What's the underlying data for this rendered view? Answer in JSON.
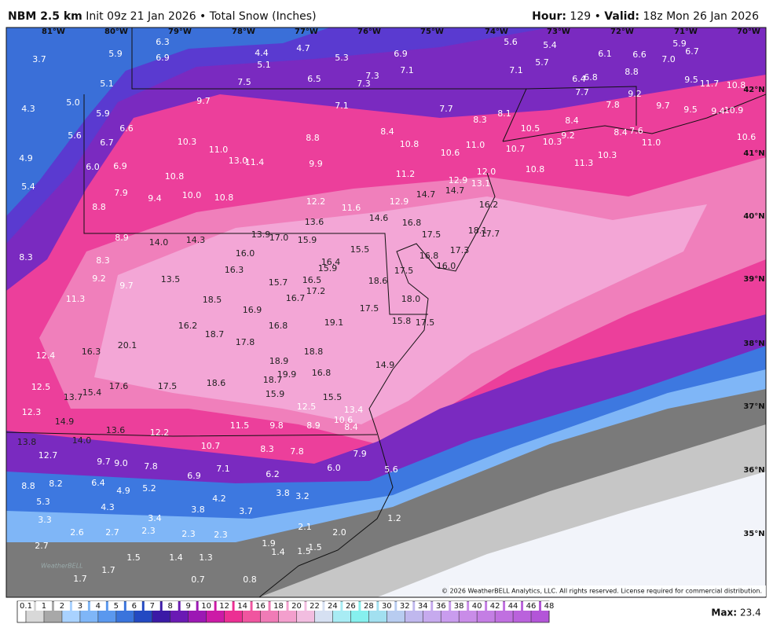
{
  "header": {
    "model": "NBM 2.5 km",
    "init": "Init 09z 21 Jan 2026 • Total Snow (Inches)",
    "hour_label": "Hour:",
    "hour": "129 •",
    "valid_label": "Valid:",
    "valid": "18z Mon 26 Jan 2026"
  },
  "map": {
    "lon_labels": [
      "81°W",
      "80°W",
      "79°W",
      "78°W",
      "77°W",
      "76°W",
      "75°W",
      "74°W",
      "73°W",
      "72°W",
      "71°W",
      "70°W"
    ],
    "lat_labels": [
      "42°N",
      "41°N",
      "40°N",
      "39°N",
      "38°N",
      "37°N",
      "36°N",
      "35°N"
    ],
    "points": [
      "3.7",
      "5.9",
      "6.3",
      "6.9",
      "4.4",
      "5.1",
      "4.7",
      "5.3",
      "6.9",
      "5.6",
      "5.4",
      "5.7",
      "6.1",
      "6.6",
      "7.0",
      "5.9",
      "6.7",
      "5.1",
      "7.5",
      "6.5",
      "7.3",
      "7.3",
      "7.1",
      "7.1",
      "6.4",
      "6.8",
      "8.8",
      "9.5",
      "11.7",
      "10.8",
      "4.3",
      "5.0",
      "5.9",
      "9.7",
      "7.1",
      "7.7",
      "8.3",
      "8.1",
      "7.7",
      "7.8",
      "9.2",
      "9.7",
      "9.5",
      "9.4",
      "10.9",
      "6.6",
      "10.5",
      "8.4",
      "5.6",
      "6.7",
      "10.3",
      "11.0",
      "8.8",
      "8.4",
      "10.8",
      "11.0",
      "10.7",
      "10.3",
      "9.2",
      "8.4",
      "7.6",
      "11.0",
      "10.6",
      "4.9",
      "6.0",
      "6.9",
      "13.0",
      "11.4",
      "9.9",
      "10.6",
      "10.3",
      "11.3",
      "10.8",
      "12.0",
      "5.4",
      "10.8",
      "11.2",
      "12.9",
      "13.1",
      "7.9",
      "10.0",
      "10.8",
      "14.7",
      "14.7",
      "9.4",
      "12.2",
      "12.9",
      "16.2",
      "8.8",
      "11.6",
      "13.6",
      "14.6",
      "16.8",
      "17.5",
      "18.1",
      "17.7",
      "8.9",
      "14.0",
      "14.3",
      "13.9",
      "17.0",
      "15.9",
      "16.0",
      "17.3",
      "16.8",
      "16.0",
      "8.3",
      "8.3",
      "16.3",
      "16.4",
      "15.9",
      "15.5",
      "17.5",
      "18.6",
      "9.2",
      "9.7",
      "13.5",
      "15.7",
      "16.5",
      "17.2",
      "16.7",
      "18.0",
      "11.3",
      "18.5",
      "16.9",
      "17.5",
      "16.2",
      "16.8",
      "19.1",
      "15.8",
      "17.5",
      "18.7",
      "17.8",
      "16.3",
      "20.1",
      "18.8",
      "12.4",
      "18.9",
      "14.9",
      "16.8",
      "19.9",
      "18.7",
      "17.6",
      "17.5",
      "18.6",
      "12.5",
      "15.4",
      "13.7",
      "15.9",
      "15.5",
      "12.5",
      "13.4",
      "12.3",
      "14.9",
      "10.6",
      "8.4",
      "11.5",
      "9.8",
      "8.9",
      "13.6",
      "12.2",
      "13.8",
      "14.0",
      "10.7",
      "8.3",
      "7.8",
      "7.9",
      "12.7",
      "9.7",
      "9.0",
      "7.8",
      "7.1",
      "6.0",
      "5.6",
      "6.9",
      "6.2",
      "8.8",
      "8.2",
      "6.4",
      "4.9",
      "5.2",
      "3.8",
      "3.2",
      "5.3",
      "4.3",
      "4.2",
      "3.8",
      "3.7",
      "3.3",
      "3.4",
      "1.2",
      "2.6",
      "2.7",
      "2.3",
      "2.3",
      "2.3",
      "2.1",
      "2.0",
      "2.7",
      "1.9",
      "1.4",
      "1.5",
      "1.5",
      "1.5",
      "1.4",
      "1.3",
      "1.7",
      "1.7",
      "0.7",
      "0.8"
    ],
    "watermark": "WeatherBELL",
    "copyright": "© 2026 WeatherBELL Analytics, LLC. All rights reserved. License required for commercial distribution."
  },
  "legend": {
    "ticks": [
      0.1,
      1,
      2,
      3,
      4,
      5,
      6,
      7,
      8,
      9,
      10,
      12,
      14,
      16,
      18,
      20,
      22,
      24,
      26,
      28,
      30,
      32,
      34,
      36,
      38,
      40,
      42,
      44,
      46,
      48
    ],
    "colors": [
      "#d8d8d8",
      "#a8a8a8",
      "#a9d2ff",
      "#7fb6f7",
      "#5a98ee",
      "#3a74dc",
      "#2349c2",
      "#3b1aa6",
      "#6a1ab4",
      "#9c18b4",
      "#cc1aa6",
      "#ec2f93",
      "#f0559f",
      "#f07bb6",
      "#f39fcd",
      "#f2bde0",
      "#d6e0f2",
      "#a8ecf4",
      "#86f0ee",
      "#a2e0f0",
      "#b8ccf0",
      "#c0b8ee",
      "#c6aaee",
      "#c99cee",
      "#c98ce8",
      "#c47ee4",
      "#c070e0",
      "#ba62dc",
      "#b355d8"
    ],
    "max_label": "Max:",
    "max": 23.4
  }
}
